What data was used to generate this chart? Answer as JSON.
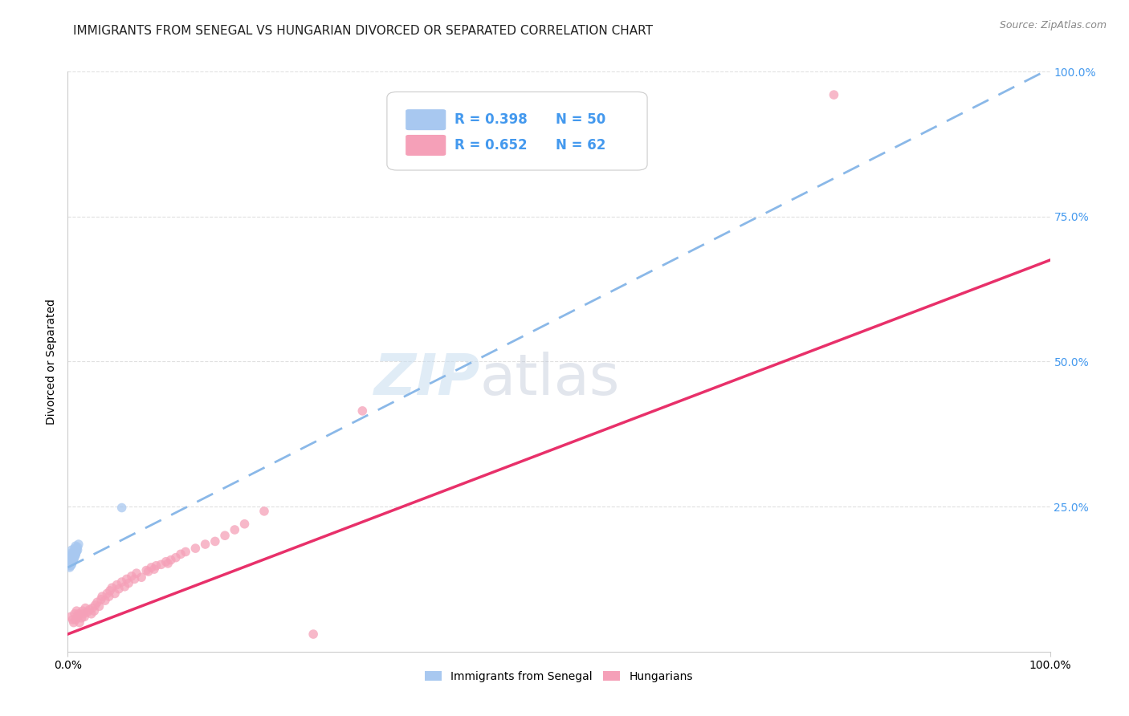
{
  "title": "IMMIGRANTS FROM SENEGAL VS HUNGARIAN DIVORCED OR SEPARATED CORRELATION CHART",
  "source": "Source: ZipAtlas.com",
  "ylabel": "Divorced or Separated",
  "xlim": [
    0.0,
    1.0
  ],
  "ylim": [
    0.0,
    1.0
  ],
  "xtick_labels": [
    "0.0%",
    "100.0%"
  ],
  "xtick_positions": [
    0.0,
    1.0
  ],
  "ytick_positions": [
    0.25,
    0.5,
    0.75,
    1.0
  ],
  "ytick_right_labels": [
    "25.0%",
    "50.0%",
    "75.0%",
    "100.0%"
  ],
  "blue_scatter_x": [
    0.003,
    0.004,
    0.004,
    0.005,
    0.005,
    0.005,
    0.006,
    0.006,
    0.006,
    0.007,
    0.007,
    0.007,
    0.008,
    0.008,
    0.008,
    0.009,
    0.009,
    0.01,
    0.01,
    0.011,
    0.003,
    0.003,
    0.004,
    0.004,
    0.005,
    0.005,
    0.006,
    0.006,
    0.007,
    0.007,
    0.002,
    0.002,
    0.003,
    0.003,
    0.004,
    0.004,
    0.005,
    0.005,
    0.006,
    0.007,
    0.002,
    0.003,
    0.003,
    0.004,
    0.004,
    0.005,
    0.006,
    0.007,
    0.008,
    0.055
  ],
  "blue_scatter_y": [
    0.165,
    0.17,
    0.175,
    0.155,
    0.16,
    0.165,
    0.158,
    0.163,
    0.17,
    0.165,
    0.172,
    0.178,
    0.168,
    0.175,
    0.182,
    0.172,
    0.178,
    0.175,
    0.18,
    0.185,
    0.155,
    0.16,
    0.158,
    0.163,
    0.16,
    0.165,
    0.163,
    0.168,
    0.165,
    0.17,
    0.148,
    0.152,
    0.15,
    0.155,
    0.152,
    0.157,
    0.155,
    0.16,
    0.162,
    0.168,
    0.145,
    0.148,
    0.152,
    0.15,
    0.155,
    0.158,
    0.16,
    0.163,
    0.167,
    0.248
  ],
  "blue_line_x": [
    0.0,
    1.0
  ],
  "blue_line_y": [
    0.145,
    1.005
  ],
  "pink_scatter_x": [
    0.003,
    0.005,
    0.006,
    0.007,
    0.008,
    0.009,
    0.01,
    0.011,
    0.012,
    0.014,
    0.015,
    0.016,
    0.017,
    0.018,
    0.02,
    0.022,
    0.024,
    0.025,
    0.027,
    0.028,
    0.03,
    0.032,
    0.034,
    0.035,
    0.038,
    0.04,
    0.042,
    0.043,
    0.045,
    0.048,
    0.05,
    0.052,
    0.055,
    0.058,
    0.06,
    0.062,
    0.065,
    0.068,
    0.07,
    0.075,
    0.08,
    0.082,
    0.085,
    0.088,
    0.09,
    0.095,
    0.1,
    0.102,
    0.105,
    0.11,
    0.115,
    0.12,
    0.13,
    0.14,
    0.15,
    0.16,
    0.17,
    0.18,
    0.2,
    0.25,
    0.3,
    0.78
  ],
  "pink_scatter_y": [
    0.06,
    0.055,
    0.05,
    0.065,
    0.055,
    0.07,
    0.06,
    0.065,
    0.05,
    0.058,
    0.07,
    0.065,
    0.06,
    0.075,
    0.068,
    0.072,
    0.065,
    0.075,
    0.07,
    0.08,
    0.085,
    0.078,
    0.09,
    0.095,
    0.088,
    0.1,
    0.095,
    0.105,
    0.11,
    0.1,
    0.115,
    0.108,
    0.12,
    0.112,
    0.125,
    0.118,
    0.13,
    0.125,
    0.135,
    0.128,
    0.14,
    0.138,
    0.145,
    0.142,
    0.148,
    0.15,
    0.155,
    0.152,
    0.158,
    0.162,
    0.168,
    0.172,
    0.178,
    0.185,
    0.19,
    0.2,
    0.21,
    0.22,
    0.242,
    0.03,
    0.415,
    0.96
  ],
  "pink_line_x": [
    0.0,
    1.0
  ],
  "pink_line_y": [
    0.03,
    0.675
  ],
  "watermark_zip": "ZIP",
  "watermark_atlas": "atlas",
  "blue_color": "#a8c8f0",
  "blue_line_color": "#8ab8e8",
  "pink_color": "#f5a0b8",
  "pink_line_color": "#e8306a",
  "background_color": "#ffffff",
  "grid_color": "#e0e0e0",
  "title_fontsize": 11,
  "axis_label_fontsize": 10,
  "tick_fontsize": 10,
  "marker_size": 70,
  "legend_r1": "R = 0.398",
  "legend_n1": "N = 50",
  "legend_r2": "R = 0.652",
  "legend_n2": "N = 62"
}
